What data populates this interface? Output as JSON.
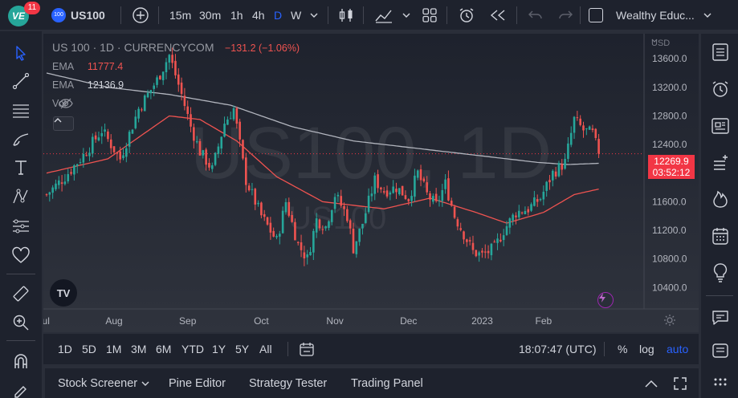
{
  "app": {
    "notif_count": "11",
    "symbol_badge": "100"
  },
  "toolbar": {
    "symbol": "US100",
    "intervals": [
      "15m",
      "30m",
      "1h",
      "4h",
      "D",
      "W"
    ],
    "active_interval": "D",
    "layout_name": "Wealthy Educ..."
  },
  "legend": {
    "title": "US 100 · 1D · CURRENCYCOM",
    "change": "−131.2 (−1.06%)",
    "ema1_label": "EMA",
    "ema1_value": "11777.4",
    "ema2_label": "EMA",
    "ema2_value": "12136.9",
    "vol_label": "Vol"
  },
  "watermark": {
    "big": "US100, 1D",
    "small": "US100"
  },
  "price_axis": {
    "currency": "USD",
    "ticks": [
      "13600.0",
      "13200.0",
      "12800.0",
      "12400.0",
      "12000.0",
      "11600.0",
      "11200.0",
      "10800.0",
      "10400.0"
    ],
    "last_price": "12269.9",
    "countdown": "03:52:12"
  },
  "time_axis": {
    "labels": [
      "Jul",
      "Aug",
      "Sep",
      "Oct",
      "Nov",
      "Dec",
      "2023",
      "Feb"
    ]
  },
  "range_bar": {
    "ranges": [
      "1D",
      "5D",
      "1M",
      "3M",
      "6M",
      "YTD",
      "1Y",
      "5Y",
      "All"
    ],
    "time": "18:07:47 (UTC)",
    "percent": "%",
    "log": "log",
    "auto": "auto"
  },
  "panels": {
    "stock_screener": "Stock Screener",
    "pine_editor": "Pine Editor",
    "strategy_tester": "Strategy Tester",
    "trading_panel": "Trading Panel"
  },
  "colors": {
    "up": "#26a69a",
    "down": "#ef5350",
    "ema_fast": "#ef5350",
    "ema_slow": "#b2b5be",
    "accent": "#2962ff"
  },
  "chart_data": {
    "type": "candlestick",
    "title": "US 100 · 1D · CURRENCYCOM",
    "ylim": [
      10100,
      13950
    ],
    "y_ticks": [
      13600,
      13200,
      12800,
      12400,
      12000,
      11600,
      11200,
      10800,
      10400
    ],
    "x_labels": [
      "Jul",
      "Aug",
      "Sep",
      "Oct",
      "Nov",
      "Dec",
      "2023",
      "Feb"
    ],
    "last_price": 12269.9,
    "series": [
      {
        "name": "EMA",
        "value": 11777.4
      },
      {
        "name": "EMA",
        "value": 12136.9
      }
    ],
    "price_path": [
      {
        "i": 0,
        "p": 11700
      },
      {
        "i": 6,
        "p": 11950
      },
      {
        "i": 12,
        "p": 12250
      },
      {
        "i": 18,
        "p": 12600
      },
      {
        "i": 24,
        "p": 12200
      },
      {
        "i": 30,
        "p": 12900
      },
      {
        "i": 36,
        "p": 13300
      },
      {
        "i": 40,
        "p": 13650
      },
      {
        "i": 44,
        "p": 13100
      },
      {
        "i": 47,
        "p": 12650
      },
      {
        "i": 50,
        "p": 12300
      },
      {
        "i": 54,
        "p": 12050
      },
      {
        "i": 58,
        "p": 12700
      },
      {
        "i": 61,
        "p": 12900
      },
      {
        "i": 65,
        "p": 11900
      },
      {
        "i": 70,
        "p": 11400
      },
      {
        "i": 75,
        "p": 11050
      },
      {
        "i": 78,
        "p": 11600
      },
      {
        "i": 82,
        "p": 11000
      },
      {
        "i": 85,
        "p": 10800
      },
      {
        "i": 88,
        "p": 11350
      },
      {
        "i": 91,
        "p": 11250
      },
      {
        "i": 94,
        "p": 11700
      },
      {
        "i": 98,
        "p": 11400
      },
      {
        "i": 100,
        "p": 10950
      },
      {
        "i": 103,
        "p": 11300
      },
      {
        "i": 107,
        "p": 11900
      },
      {
        "i": 110,
        "p": 11750
      },
      {
        "i": 114,
        "p": 11800
      },
      {
        "i": 118,
        "p": 11650
      },
      {
        "i": 121,
        "p": 12000
      },
      {
        "i": 124,
        "p": 11700
      },
      {
        "i": 127,
        "p": 11550
      },
      {
        "i": 130,
        "p": 11850
      },
      {
        "i": 133,
        "p": 11400
      },
      {
        "i": 136,
        "p": 11150
      },
      {
        "i": 139,
        "p": 10900
      },
      {
        "i": 142,
        "p": 10850
      },
      {
        "i": 146,
        "p": 10950
      },
      {
        "i": 149,
        "p": 11200
      },
      {
        "i": 153,
        "p": 11450
      },
      {
        "i": 157,
        "p": 11500
      },
      {
        "i": 161,
        "p": 11650
      },
      {
        "i": 165,
        "p": 12000
      },
      {
        "i": 169,
        "p": 12150
      },
      {
        "i": 172,
        "p": 12750
      },
      {
        "i": 175,
        "p": 12600
      },
      {
        "i": 178,
        "p": 12550
      },
      {
        "i": 180,
        "p": 12270
      }
    ],
    "ema_fast_path": [
      {
        "i": 0,
        "p": 12000
      },
      {
        "i": 20,
        "p": 12200
      },
      {
        "i": 40,
        "p": 12800
      },
      {
        "i": 50,
        "p": 12750
      },
      {
        "i": 62,
        "p": 12450
      },
      {
        "i": 75,
        "p": 11950
      },
      {
        "i": 90,
        "p": 11600
      },
      {
        "i": 110,
        "p": 11500
      },
      {
        "i": 125,
        "p": 11650
      },
      {
        "i": 140,
        "p": 11450
      },
      {
        "i": 150,
        "p": 11300
      },
      {
        "i": 162,
        "p": 11450
      },
      {
        "i": 172,
        "p": 11700
      },
      {
        "i": 180,
        "p": 11777
      }
    ],
    "ema_slow_path": [
      {
        "i": 0,
        "p": 13400
      },
      {
        "i": 20,
        "p": 13200
      },
      {
        "i": 40,
        "p": 13100
      },
      {
        "i": 60,
        "p": 12950
      },
      {
        "i": 80,
        "p": 12650
      },
      {
        "i": 100,
        "p": 12450
      },
      {
        "i": 120,
        "p": 12350
      },
      {
        "i": 140,
        "p": 12250
      },
      {
        "i": 160,
        "p": 12150
      },
      {
        "i": 170,
        "p": 12120
      },
      {
        "i": 180,
        "p": 12137
      }
    ]
  }
}
